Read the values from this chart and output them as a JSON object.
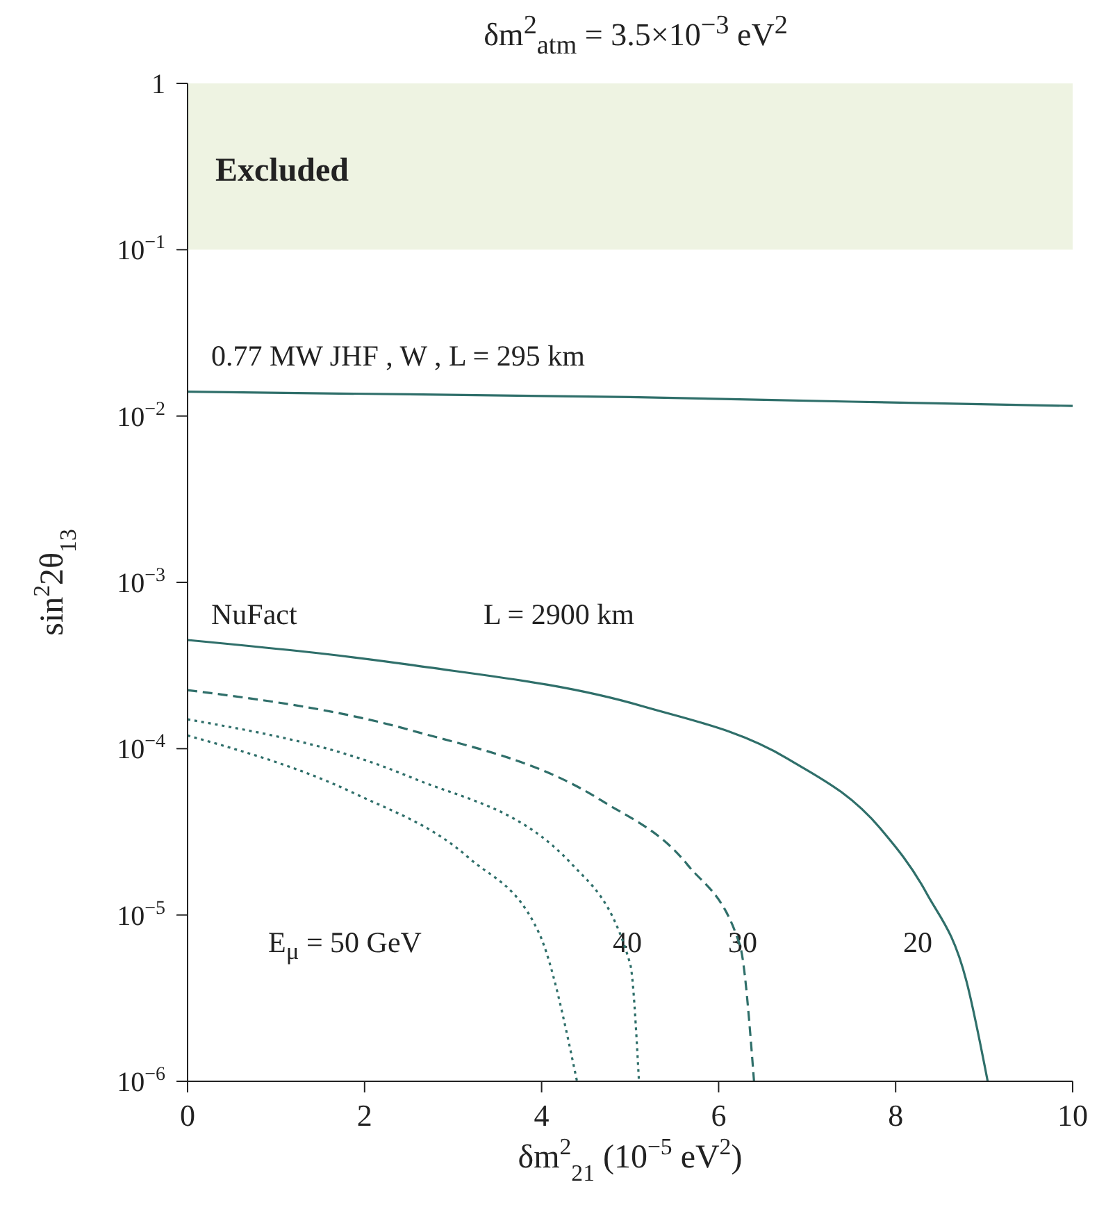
{
  "chart_data": {
    "type": "line",
    "title": "δm$^{2}$$_{atm}$ = 3.5×10$^{−3}$ eV$^{2}$",
    "xlabel": "δm$^{2}$$_{21}$  (10$^{−5}$ eV$^{2}$)",
    "ylabel": "sin$^{2}$2θ$_{13}$",
    "log": "y",
    "xlim": [
      0,
      10
    ],
    "xticks": [
      0,
      2,
      4,
      6,
      8,
      10
    ],
    "ylim": [
      1e-06,
      1
    ],
    "yticks": [
      {
        "value": 1e-06,
        "label": "10$^{−6}$"
      },
      {
        "value": 1e-05,
        "label": "10$^{−5}$"
      },
      {
        "value": 0.0001,
        "label": "10$^{−4}$"
      },
      {
        "value": 0.001,
        "label": "10$^{−3}$"
      },
      {
        "value": 0.01,
        "label": "10$^{−2}$"
      },
      {
        "value": 0.1,
        "label": "10$^{−1}$"
      },
      1
    ],
    "marker": "none",
    "series": [
      {
        "color": "#2f6f6a",
        "line_style": "solid",
        "x": [
          0,
          2.5,
          5,
          7.5,
          10
        ],
        "values": [
          0.014,
          0.0135,
          0.013,
          0.0122,
          0.0115
        ]
      },
      {
        "color": "#2f6f6a",
        "line_style": "solid",
        "x": [
          0,
          2.5,
          5.14,
          6.78,
          7.83,
          8.35,
          8.8,
          9.04
        ],
        "values": [
          0.00045,
          0.00032,
          0.00018,
          8.7e-05,
          3.3e-05,
          1.35e-05,
          4e-06,
          1e-06
        ]
      },
      {
        "color": "#2f6f6a",
        "line_style": "dashed",
        "x": [
          0,
          2.5,
          4.67,
          5.65,
          6.24,
          6.4
        ],
        "values": [
          0.000225,
          0.00013,
          4.9e-05,
          2e-05,
          6.6e-06,
          1e-06
        ]
      },
      {
        "color": "#2f6f6a",
        "line_style": "dotted",
        "x": [
          0,
          2.5,
          4.35,
          5,
          5.1
        ],
        "values": [
          0.00015,
          6.8e-05,
          2e-05,
          5.1e-06,
          1e-06
        ]
      },
      {
        "color": "#2f6f6a",
        "line_style": "dotted",
        "x": [
          0,
          1.88,
          3.18,
          3.97,
          4.4
        ],
        "values": [
          0.00012,
          5.4e-05,
          2.2e-05,
          7.8e-06,
          1e-06
        ]
      }
    ],
    "bands": [
      {
        "axis": "y",
        "from": 0.1,
        "to": 1,
        "label": "Excluded",
        "color": "#eef3e2"
      }
    ],
    "annotations": [
      "0.77 MW  JHF ,  W ,  L = 295 km",
      "NuFact",
      "L = 2900 km",
      "E$_{μ}$ = 50 GeV",
      "40",
      "30",
      "20"
    ]
  }
}
